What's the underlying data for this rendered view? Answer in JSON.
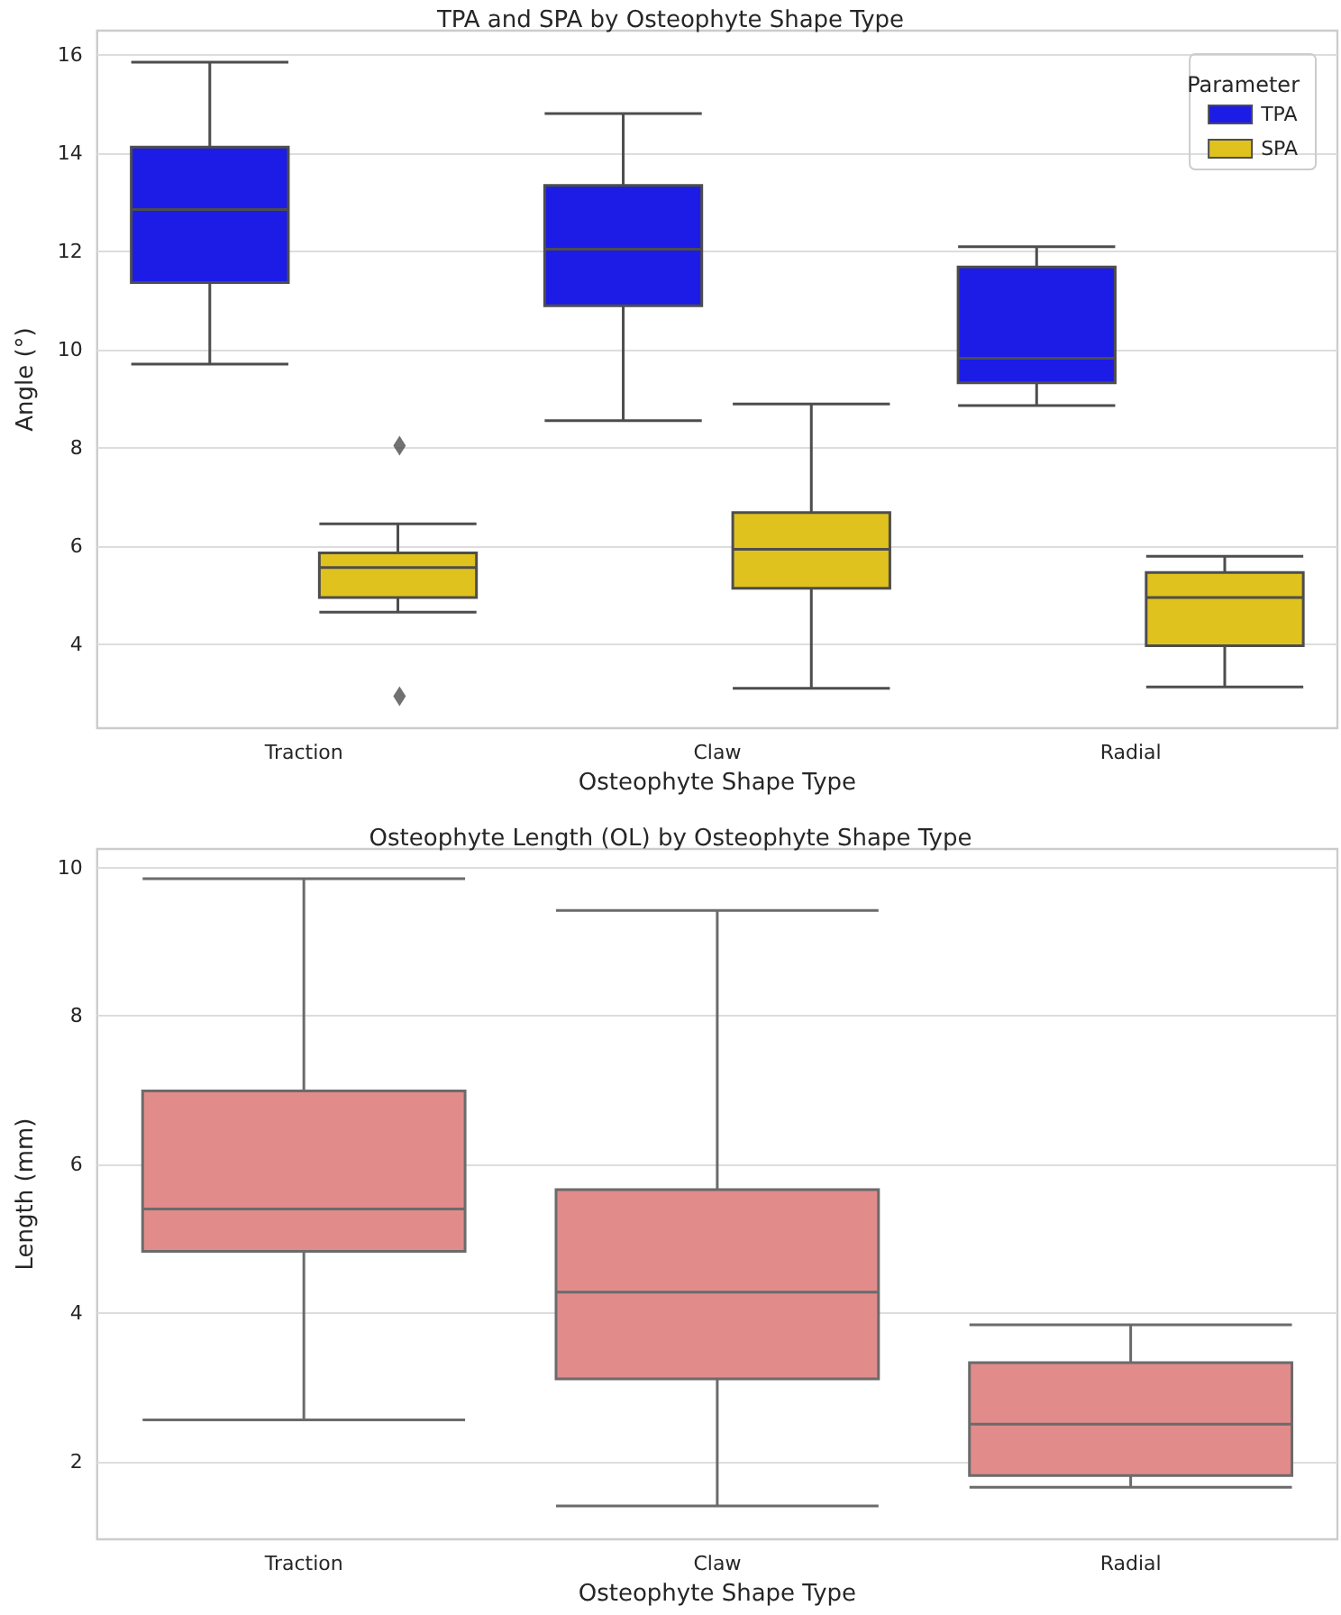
{
  "chart_data": [
    {
      "type": "box",
      "title": "TPA and SPA by Osteophyte Shape Type",
      "xlabel": "Osteophyte Shape Type",
      "ylabel": "Angle (°)",
      "categories": [
        "Traction",
        "Claw",
        "Radial"
      ],
      "series": [
        {
          "name": "TPA",
          "color": "#1c1ce6",
          "boxes": [
            {
              "low": 9.71,
              "q1": 11.37,
              "median": 12.86,
              "q3": 14.13,
              "high": 15.86
            },
            {
              "low": 8.56,
              "q1": 10.9,
              "median": 12.05,
              "q3": 13.35,
              "high": 14.81
            },
            {
              "low": 8.87,
              "q1": 9.33,
              "median": 9.83,
              "q3": 11.69,
              "high": 12.1
            }
          ]
        },
        {
          "name": "SPA",
          "color": "#e0c21e",
          "boxes": [
            {
              "low": 4.66,
              "q1": 4.96,
              "median": 5.57,
              "q3": 5.87,
              "high": 6.46,
              "outliers": [
                8.05,
                2.95
              ]
            },
            {
              "low": 3.11,
              "q1": 5.15,
              "median": 5.94,
              "q3": 6.69,
              "high": 8.9
            },
            {
              "low": 3.14,
              "q1": 3.98,
              "median": 4.96,
              "q3": 5.47,
              "high": 5.8
            }
          ]
        }
      ],
      "ylim": [
        2.3,
        16.5
      ],
      "yticks": [
        4,
        6,
        8,
        10,
        12,
        14,
        16
      ],
      "grid": "y",
      "legend": "top right",
      "legend_title": "Parameter",
      "marker": "diamond"
    },
    {
      "type": "box",
      "title": "Osteophyte Length (OL) by Osteophyte Shape Type",
      "xlabel": "Osteophyte Shape Type",
      "ylabel": "Length (mm)",
      "categories": [
        "Traction",
        "Claw",
        "Radial"
      ],
      "color": "#e28b8b",
      "boxes": [
        {
          "low": 2.56,
          "q1": 4.83,
          "median": 5.4,
          "q3": 6.99,
          "high": 9.85
        },
        {
          "low": 1.4,
          "q1": 3.11,
          "median": 4.28,
          "q3": 5.66,
          "high": 9.42
        },
        {
          "low": 1.65,
          "q1": 1.81,
          "median": 2.5,
          "q3": 3.33,
          "high": 3.84
        }
      ],
      "ylim": [
        0.95,
        10.25
      ],
      "yticks": [
        2,
        4,
        6,
        8,
        10
      ],
      "grid": "y"
    }
  ]
}
